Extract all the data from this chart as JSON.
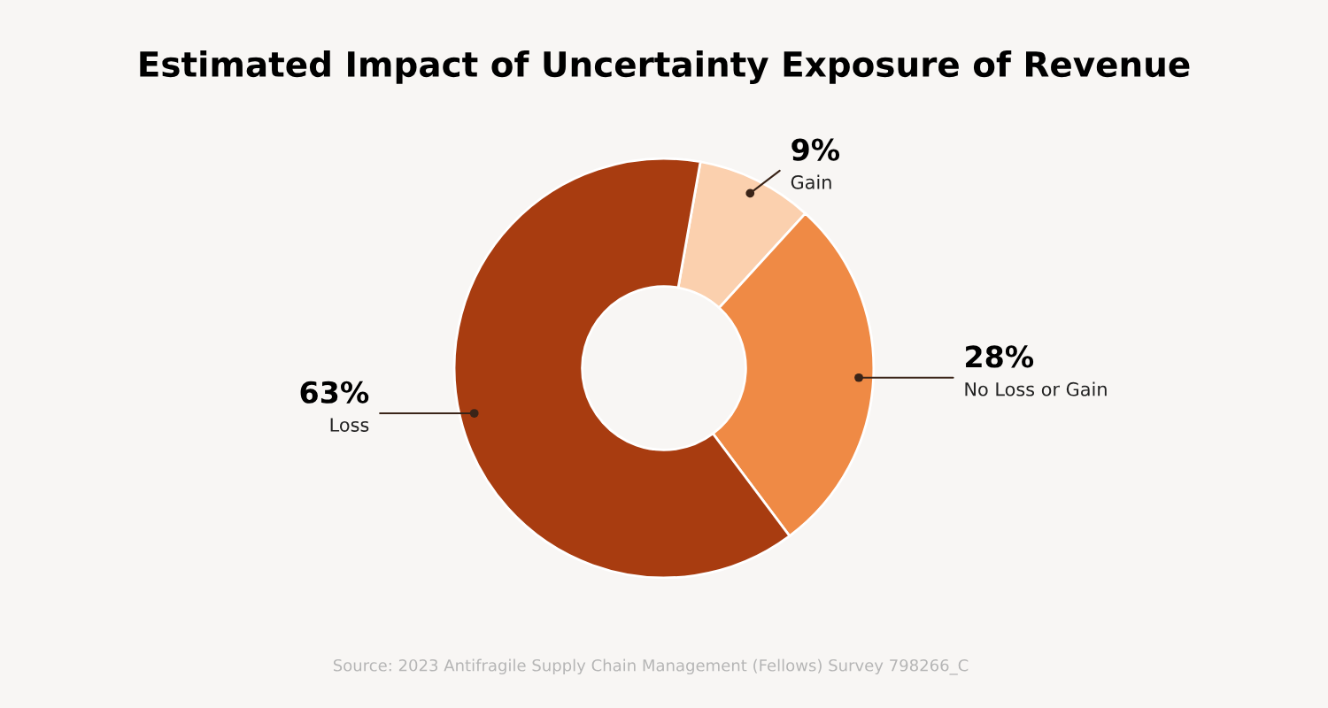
{
  "chart_data": {
    "type": "donut",
    "title": "Estimated Impact of Uncertainty Exposure of Revenue",
    "categories": [
      "Gain",
      "No Loss or Gain",
      "Loss"
    ],
    "values": [
      9,
      28,
      63
    ],
    "colors": [
      "#fbd0ae",
      "#ef8a45",
      "#a83c10"
    ],
    "value_labels": [
      "9%",
      "28%",
      "63%"
    ],
    "legend": false,
    "annotations": [
      "Source: 2023 Antifragile Supply Chain Management (Fellows) Survey 798266_C"
    ]
  }
}
